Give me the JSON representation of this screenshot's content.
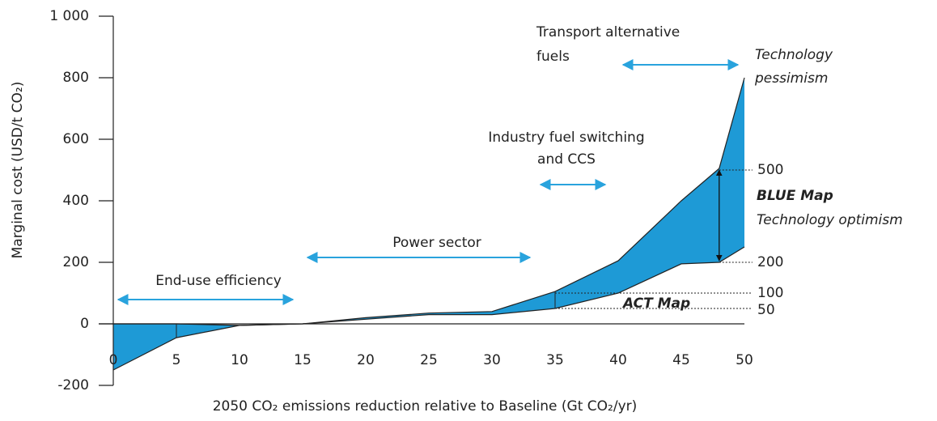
{
  "chart_data": {
    "type": "area_band",
    "x_label": "2050 CO₂ emissions reduction relative to Baseline (Gt CO₂/yr)",
    "y_label": "Marginal cost (USD/t CO₂)",
    "x": [
      0,
      5,
      10,
      15,
      20,
      25,
      30,
      35,
      40,
      45,
      48,
      50
    ],
    "series": [
      {
        "name": [
          "Technology",
          "pessimism"
        ],
        "color": "#1e9ad6",
        "values": [
          0,
          0,
          -5,
          0,
          20,
          35,
          40,
          105,
          205,
          400,
          505,
          800
        ]
      },
      {
        "name": [
          "BLUE Map",
          "Technology optimism"
        ],
        "color": "#1e9ad6",
        "values": [
          -150,
          -45,
          -5,
          0,
          15,
          30,
          30,
          50,
          100,
          195,
          200,
          250
        ]
      }
    ],
    "reference_levels": [
      500,
      200,
      100,
      50
    ],
    "reference_label": "ACT Map",
    "annotations": [
      {
        "text": [
          "Transport alternative",
          "fuels"
        ]
      },
      {
        "text": [
          "Industry fuel switching",
          "and CCS"
        ]
      },
      {
        "text": [
          "Power sector"
        ]
      },
      {
        "text": [
          "End-use efficiency"
        ]
      }
    ],
    "xlim": [
      0,
      50
    ],
    "ylim": [
      -200,
      1000
    ],
    "xticks": [
      0,
      5,
      10,
      15,
      20,
      25,
      30,
      35,
      40,
      45,
      50
    ],
    "yticks": [
      -200,
      0,
      200,
      400,
      600,
      800,
      {
        "value": 1000,
        "label": "1 000"
      }
    ]
  }
}
